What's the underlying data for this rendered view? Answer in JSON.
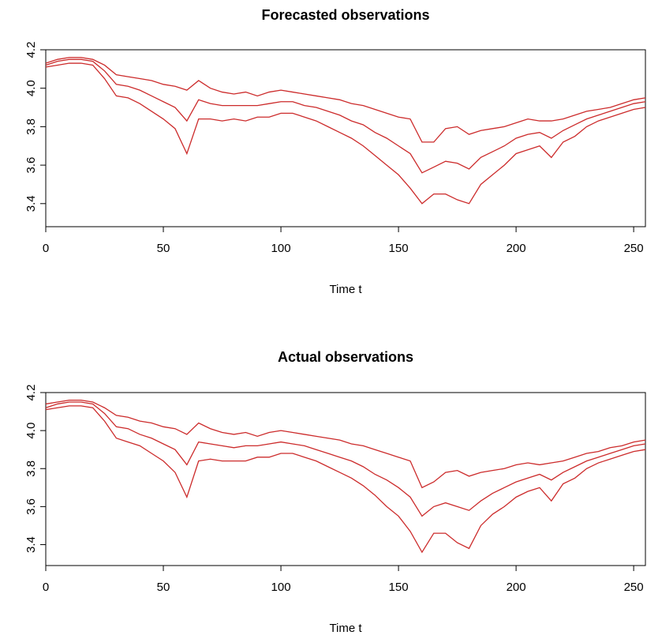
{
  "chart_data": [
    {
      "type": "line",
      "title": "Forecasted observations",
      "xlabel": "Time t",
      "x": [
        0,
        5,
        10,
        15,
        20,
        25,
        30,
        35,
        40,
        45,
        50,
        55,
        60,
        65,
        70,
        75,
        80,
        85,
        90,
        95,
        100,
        105,
        110,
        115,
        120,
        125,
        130,
        135,
        140,
        145,
        150,
        155,
        160,
        165,
        170,
        175,
        180,
        185,
        190,
        195,
        200,
        205,
        210,
        215,
        220,
        225,
        230,
        235,
        240,
        245,
        250,
        255
      ],
      "series": [
        {
          "color": "#cc2b2b",
          "values": [
            4.13,
            4.15,
            4.16,
            4.16,
            4.15,
            4.12,
            4.07,
            4.06,
            4.05,
            4.04,
            4.02,
            4.01,
            3.99,
            4.04,
            4.0,
            3.98,
            3.97,
            3.98,
            3.96,
            3.98,
            3.99,
            3.98,
            3.97,
            3.96,
            3.95,
            3.94,
            3.92,
            3.91,
            3.89,
            3.87,
            3.85,
            3.84,
            3.72,
            3.72,
            3.79,
            3.8,
            3.76,
            3.78,
            3.79,
            3.8,
            3.82,
            3.84,
            3.83,
            3.83,
            3.84,
            3.86,
            3.88,
            3.89,
            3.9,
            3.92,
            3.94,
            3.95
          ]
        },
        {
          "color": "#cc2b2b",
          "values": [
            4.12,
            4.14,
            4.15,
            4.15,
            4.14,
            4.09,
            4.02,
            4.01,
            3.99,
            3.96,
            3.93,
            3.9,
            3.83,
            3.94,
            3.92,
            3.91,
            3.91,
            3.91,
            3.91,
            3.92,
            3.93,
            3.93,
            3.91,
            3.9,
            3.88,
            3.86,
            3.83,
            3.81,
            3.77,
            3.74,
            3.7,
            3.66,
            3.56,
            3.59,
            3.62,
            3.61,
            3.58,
            3.64,
            3.67,
            3.7,
            3.74,
            3.76,
            3.77,
            3.74,
            3.78,
            3.81,
            3.84,
            3.86,
            3.88,
            3.9,
            3.92,
            3.93
          ]
        },
        {
          "color": "#cc2b2b",
          "values": [
            4.11,
            4.12,
            4.13,
            4.13,
            4.12,
            4.05,
            3.96,
            3.95,
            3.92,
            3.88,
            3.84,
            3.79,
            3.66,
            3.84,
            3.84,
            3.83,
            3.84,
            3.83,
            3.85,
            3.85,
            3.87,
            3.87,
            3.85,
            3.83,
            3.8,
            3.77,
            3.74,
            3.7,
            3.65,
            3.6,
            3.55,
            3.48,
            3.4,
            3.45,
            3.45,
            3.42,
            3.4,
            3.5,
            3.55,
            3.6,
            3.66,
            3.68,
            3.7,
            3.64,
            3.72,
            3.75,
            3.8,
            3.83,
            3.85,
            3.87,
            3.89,
            3.9
          ]
        }
      ],
      "xlim": [
        0,
        255
      ],
      "ylim": [
        3.28,
        4.2
      ],
      "xticks": [
        0,
        50,
        100,
        150,
        200,
        250
      ],
      "yticks": [
        3.4,
        3.6,
        3.8,
        {
          "value": 4,
          "label": "4.0"
        },
        4.2
      ]
    },
    {
      "type": "line",
      "title": "Actual observations",
      "xlabel": "Time t",
      "x": [
        0,
        5,
        10,
        15,
        20,
        25,
        30,
        35,
        40,
        45,
        50,
        55,
        60,
        65,
        70,
        75,
        80,
        85,
        90,
        95,
        100,
        105,
        110,
        115,
        120,
        125,
        130,
        135,
        140,
        145,
        150,
        155,
        160,
        165,
        170,
        175,
        180,
        185,
        190,
        195,
        200,
        205,
        210,
        215,
        220,
        225,
        230,
        235,
        240,
        245,
        250,
        255
      ],
      "series": [
        {
          "color": "#cc2b2b",
          "values": [
            4.14,
            4.15,
            4.16,
            4.16,
            4.15,
            4.12,
            4.08,
            4.07,
            4.05,
            4.04,
            4.02,
            4.01,
            3.98,
            4.04,
            4.01,
            3.99,
            3.98,
            3.99,
            3.97,
            3.99,
            4.0,
            3.99,
            3.98,
            3.97,
            3.96,
            3.95,
            3.93,
            3.92,
            3.9,
            3.88,
            3.86,
            3.84,
            3.7,
            3.73,
            3.78,
            3.79,
            3.76,
            3.78,
            3.79,
            3.8,
            3.82,
            3.83,
            3.82,
            3.83,
            3.84,
            3.86,
            3.88,
            3.89,
            3.91,
            3.92,
            3.94,
            3.95
          ]
        },
        {
          "color": "#cc2b2b",
          "values": [
            4.12,
            4.14,
            4.15,
            4.15,
            4.14,
            4.09,
            4.02,
            4.01,
            3.98,
            3.96,
            3.93,
            3.9,
            3.82,
            3.94,
            3.93,
            3.92,
            3.91,
            3.92,
            3.92,
            3.93,
            3.94,
            3.93,
            3.92,
            3.9,
            3.88,
            3.86,
            3.84,
            3.81,
            3.77,
            3.74,
            3.7,
            3.65,
            3.55,
            3.6,
            3.62,
            3.6,
            3.58,
            3.63,
            3.67,
            3.7,
            3.73,
            3.75,
            3.77,
            3.74,
            3.78,
            3.81,
            3.84,
            3.86,
            3.88,
            3.9,
            3.92,
            3.93
          ]
        },
        {
          "color": "#cc2b2b",
          "values": [
            4.11,
            4.12,
            4.13,
            4.13,
            4.12,
            4.05,
            3.96,
            3.94,
            3.92,
            3.88,
            3.84,
            3.78,
            3.65,
            3.84,
            3.85,
            3.84,
            3.84,
            3.84,
            3.86,
            3.86,
            3.88,
            3.88,
            3.86,
            3.84,
            3.81,
            3.78,
            3.75,
            3.71,
            3.66,
            3.6,
            3.55,
            3.47,
            3.36,
            3.46,
            3.46,
            3.41,
            3.38,
            3.5,
            3.56,
            3.6,
            3.65,
            3.68,
            3.7,
            3.63,
            3.72,
            3.75,
            3.8,
            3.83,
            3.85,
            3.87,
            3.89,
            3.9
          ]
        }
      ],
      "xlim": [
        0,
        255
      ],
      "ylim": [
        3.29,
        4.2
      ],
      "xticks": [
        0,
        50,
        100,
        150,
        200,
        250
      ],
      "yticks": [
        3.4,
        3.6,
        3.8,
        {
          "value": 4,
          "label": "4.0"
        },
        4.2
      ]
    }
  ]
}
